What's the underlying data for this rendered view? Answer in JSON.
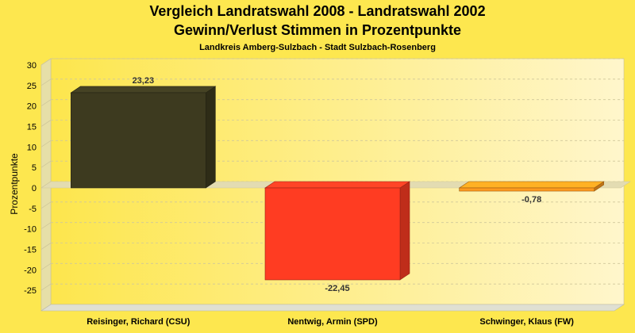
{
  "chart_data": {
    "type": "bar",
    "title": "Vergleich Landratswahl 2008 - Landratswahl 2002",
    "subtitle": "Gewinn/Verlust Stimmen in Prozentpunkte",
    "subtitle2": "Landkreis Amberg-Sulzbach - Stadt Sulzbach-Rosenberg",
    "ylabel": "Prozentpunkte",
    "xlabel": "",
    "ylim": [
      -30,
      30
    ],
    "yticks": [
      30,
      25,
      20,
      15,
      10,
      5,
      0,
      -5,
      -10,
      -15,
      -20,
      -25
    ],
    "grid": true,
    "categories": [
      "Reisinger, Richard (CSU)",
      "Nentwig, Armin (SPD)",
      "Schwinger, Klaus (FW)"
    ],
    "values": [
      23.23,
      -22.45,
      -0.78
    ],
    "value_labels": [
      "23,23",
      "-22,45",
      "-0,78"
    ],
    "colors": [
      "#3d3a1f",
      "#ff3c22",
      "#ff9a1f"
    ]
  }
}
